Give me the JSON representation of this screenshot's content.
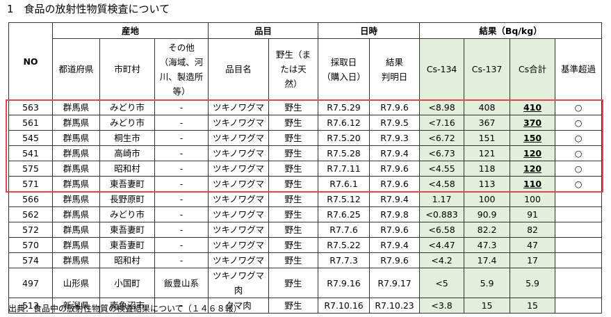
{
  "title": "1　食品の放射性物質検査について",
  "table": {
    "header_top": [
      "NO",
      "産地",
      "品目",
      "日時",
      "結果（Bq/kg）"
    ],
    "header_sub": [
      "都道府県",
      "市町村",
      "その他\n（海域、河\n川、製造所\n等）",
      "品目名",
      "野生（ま\nたは天\n然）",
      "採取日\n（購入日）",
      "結果\n判明日",
      "Cs-134",
      "Cs-137",
      "Cs合計",
      "基準超過"
    ],
    "rows": [
      [
        "563",
        "群馬県",
        "みどり市",
        "-",
        "ツキノワグマ",
        "野生",
        "R7.5.29",
        "R7.9.6",
        "<8.98",
        "408",
        "410",
        "○"
      ],
      [
        "561",
        "群馬県",
        "みどり市",
        "-",
        "ツキノワグマ",
        "野生",
        "R7.6.12",
        "R7.9.5",
        "<7.16",
        "367",
        "370",
        "○"
      ],
      [
        "545",
        "群馬県",
        "桐生市",
        "-",
        "ツキノワグマ",
        "野生",
        "R7.5.20",
        "R7.9.3",
        "<6.72",
        "151",
        "150",
        "○"
      ],
      [
        "541",
        "群馬県",
        "高崎市",
        "-",
        "ツキノワグマ",
        "野生",
        "R7.5.28",
        "R7.9.4",
        "<6.73",
        "121",
        "120",
        "○"
      ],
      [
        "575",
        "群馬県",
        "昭和村",
        "-",
        "ツキノワグマ",
        "野生",
        "R7.7.11",
        "R7.9.6",
        "<4.55",
        "118",
        "120",
        "○"
      ],
      [
        "571",
        "群馬県",
        "東吾妻町",
        "-",
        "ツキノワグマ",
        "野生",
        "R7.6.1",
        "R7.9.6",
        "<4.58",
        "113",
        "110",
        "○"
      ],
      [
        "566",
        "群馬県",
        "長野原町",
        "-",
        "ツキノワグマ",
        "野生",
        "R7.5.12",
        "R7.9.4",
        "1.17",
        "100",
        "100",
        null
      ],
      [
        "562",
        "群馬県",
        "みどり市",
        "-",
        "ツキノワグマ",
        "野生",
        "R7.6.25",
        "R7.9.8",
        "<0.883",
        "90.9",
        "91",
        null
      ],
      [
        "572",
        "群馬県",
        "東吾妻町",
        "-",
        "ツキノワグマ",
        "野生",
        "R7.7.6",
        "R7.9.6",
        "<6.58",
        "82.2",
        "82",
        null
      ],
      [
        "570",
        "群馬県",
        "東吾妻町",
        "-",
        "ツキノワグマ",
        "野生",
        "R7.5.22",
        "R7.9.4",
        "<4.47",
        "47.3",
        "47",
        null
      ],
      [
        "574",
        "群馬県",
        "昭和村",
        "-",
        "ツキノワグマ",
        "野生",
        "R7.7.3",
        "R7.9.6",
        "<4.2",
        "17.4",
        "17",
        null
      ],
      [
        "497",
        "山形県",
        "小国町",
        "飯豊山系",
        "ツキノワグマ肉",
        "野生",
        "R7.9.16",
        "R7.9.17",
        "<5",
        "5.9",
        "5.9",
        null
      ],
      [
        "513",
        "新潟県",
        "南魚沼市",
        "-",
        "クマ肉",
        "野生",
        "R7.10.16",
        "R7.10.23",
        "<3.8",
        "15",
        "15",
        null
      ]
    ]
  },
  "source": "出典：食品中の放射性物質の検査結果について（１４６８報）"
}
